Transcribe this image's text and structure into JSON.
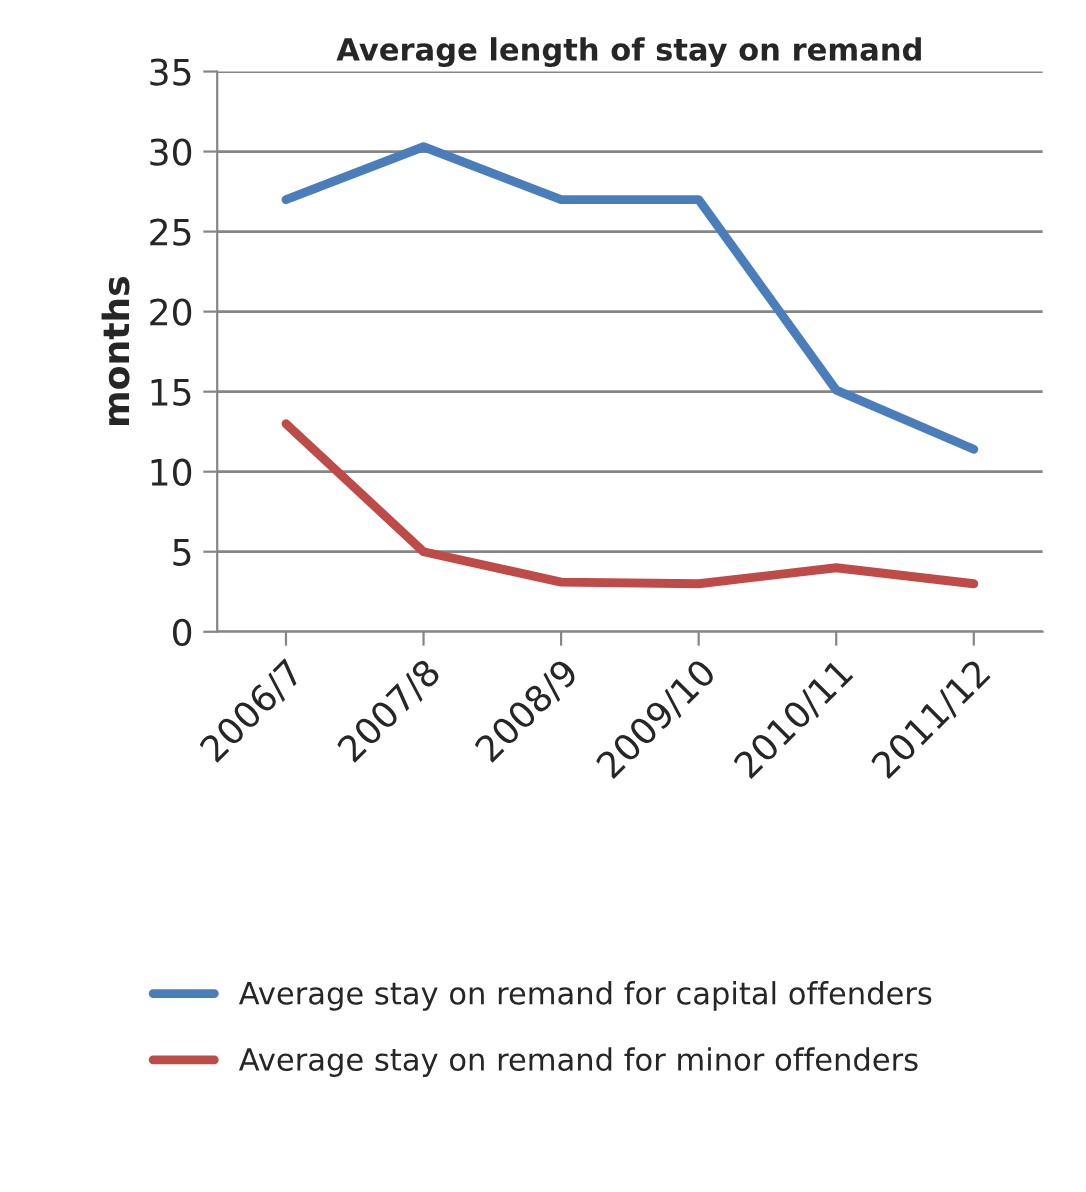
{
  "chart_data": {
    "type": "line",
    "title": "Average length of stay on remand",
    "ylabel": "months",
    "categories": [
      "2006/7",
      "2007/8",
      "2008/9",
      "2009/10",
      "2010/11",
      "2011/12"
    ],
    "series": [
      {
        "name": "Average stay on remand for capital offenders",
        "color": "#4a7ebb",
        "values": [
          27,
          30.3,
          27,
          27,
          15.1,
          11.4
        ]
      },
      {
        "name": "Average stay on remand for minor offenders",
        "color": "#be4b48",
        "values": [
          13,
          5,
          3.1,
          3,
          4,
          3
        ]
      }
    ],
    "ylim": [
      0,
      35
    ],
    "yticks": [
      0,
      5,
      10,
      15,
      20,
      25,
      30,
      35
    ],
    "grid": "y",
    "legend": "bottom",
    "marker": "none",
    "line_style": "solid"
  }
}
